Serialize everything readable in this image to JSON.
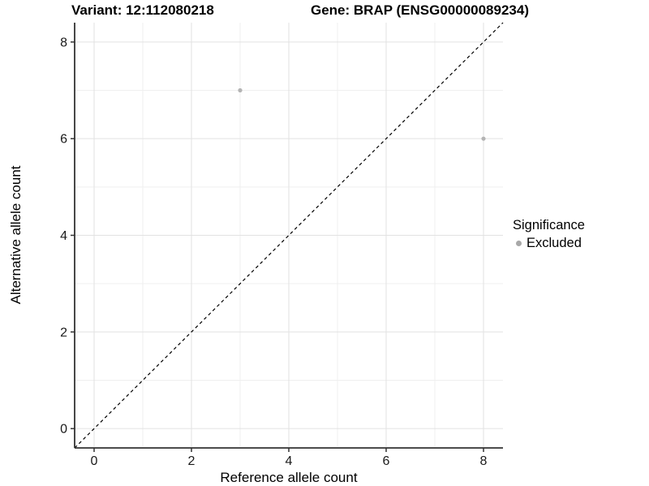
{
  "header": {
    "title_left": "Variant: 12:112080218",
    "title_right": "Gene: BRAP (ENSG00000089234)"
  },
  "chart_data": {
    "type": "scatter",
    "xlabel": "Reference allele count",
    "ylabel": "Alternative allele count",
    "xlim": [
      -0.4,
      8.4
    ],
    "ylim": [
      -0.4,
      8.4
    ],
    "x_ticks": [
      0,
      2,
      4,
      6,
      8
    ],
    "y_ticks": [
      0,
      2,
      4,
      6,
      8
    ],
    "minor_x": [
      1,
      3,
      5,
      7
    ],
    "minor_y": [
      1,
      3,
      5,
      7
    ],
    "grid": true,
    "identity_line": {
      "style": "dashed",
      "color": "#000000",
      "from": -0.4,
      "to": 8.4
    },
    "series": [
      {
        "name": "Excluded",
        "color": "#b4b4b4",
        "point_radius": 2.6,
        "points": [
          {
            "x": 3,
            "y": 7
          },
          {
            "x": 8,
            "y": 6
          }
        ]
      }
    ],
    "legend": {
      "title": "Significance",
      "position": "right",
      "items": [
        {
          "label": "Excluded",
          "color": "#a8a8a8"
        }
      ]
    }
  },
  "colors": {
    "grid_major": "#e2e2e2",
    "grid_minor": "#efefef",
    "axis": "#333333"
  }
}
